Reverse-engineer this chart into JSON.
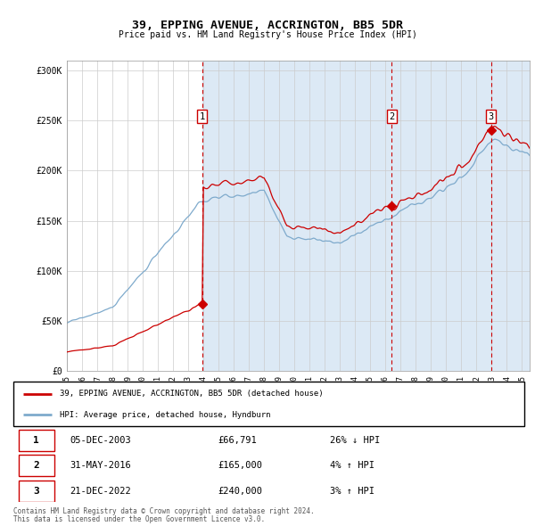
{
  "title": "39, EPPING AVENUE, ACCRINGTON, BB5 5DR",
  "subtitle": "Price paid vs. HM Land Registry's House Price Index (HPI)",
  "xlim_start": 1995.0,
  "xlim_end": 2025.5,
  "ylim_min": 0,
  "ylim_max": 310000,
  "yticks": [
    0,
    50000,
    100000,
    150000,
    200000,
    250000,
    300000
  ],
  "ytick_labels": [
    "£0",
    "£50K",
    "£100K",
    "£150K",
    "£200K",
    "£250K",
    "£300K"
  ],
  "sales": [
    {
      "date_num": 2003.917,
      "price": 66791,
      "label": "1"
    },
    {
      "date_num": 2016.417,
      "price": 165000,
      "label": "2"
    },
    {
      "date_num": 2022.958,
      "price": 240000,
      "label": "3"
    }
  ],
  "sale_annotations": [
    {
      "num": "1",
      "date": "05-DEC-2003",
      "price": "£66,791",
      "hpi": "26% ↓ HPI"
    },
    {
      "num": "2",
      "date": "31-MAY-2016",
      "price": "£165,000",
      "hpi": "4% ↑ HPI"
    },
    {
      "num": "3",
      "date": "21-DEC-2022",
      "price": "£240,000",
      "hpi": "3% ↑ HPI"
    }
  ],
  "legend_line1": "39, EPPING AVENUE, ACCRINGTON, BB5 5DR (detached house)",
  "legend_line2": "HPI: Average price, detached house, Hyndburn",
  "footer1": "Contains HM Land Registry data © Crown copyright and database right 2024.",
  "footer2": "This data is licensed under the Open Government Licence v3.0.",
  "red_color": "#cc0000",
  "blue_color": "#7eaacc",
  "bg_highlight_color": "#dce9f5",
  "sale_vline_color": "#cc0000",
  "xticks": [
    1995,
    1996,
    1997,
    1998,
    1999,
    2000,
    2001,
    2002,
    2003,
    2004,
    2005,
    2006,
    2007,
    2008,
    2009,
    2010,
    2011,
    2012,
    2013,
    2014,
    2015,
    2016,
    2017,
    2018,
    2019,
    2020,
    2021,
    2022,
    2023,
    2024,
    2025
  ]
}
